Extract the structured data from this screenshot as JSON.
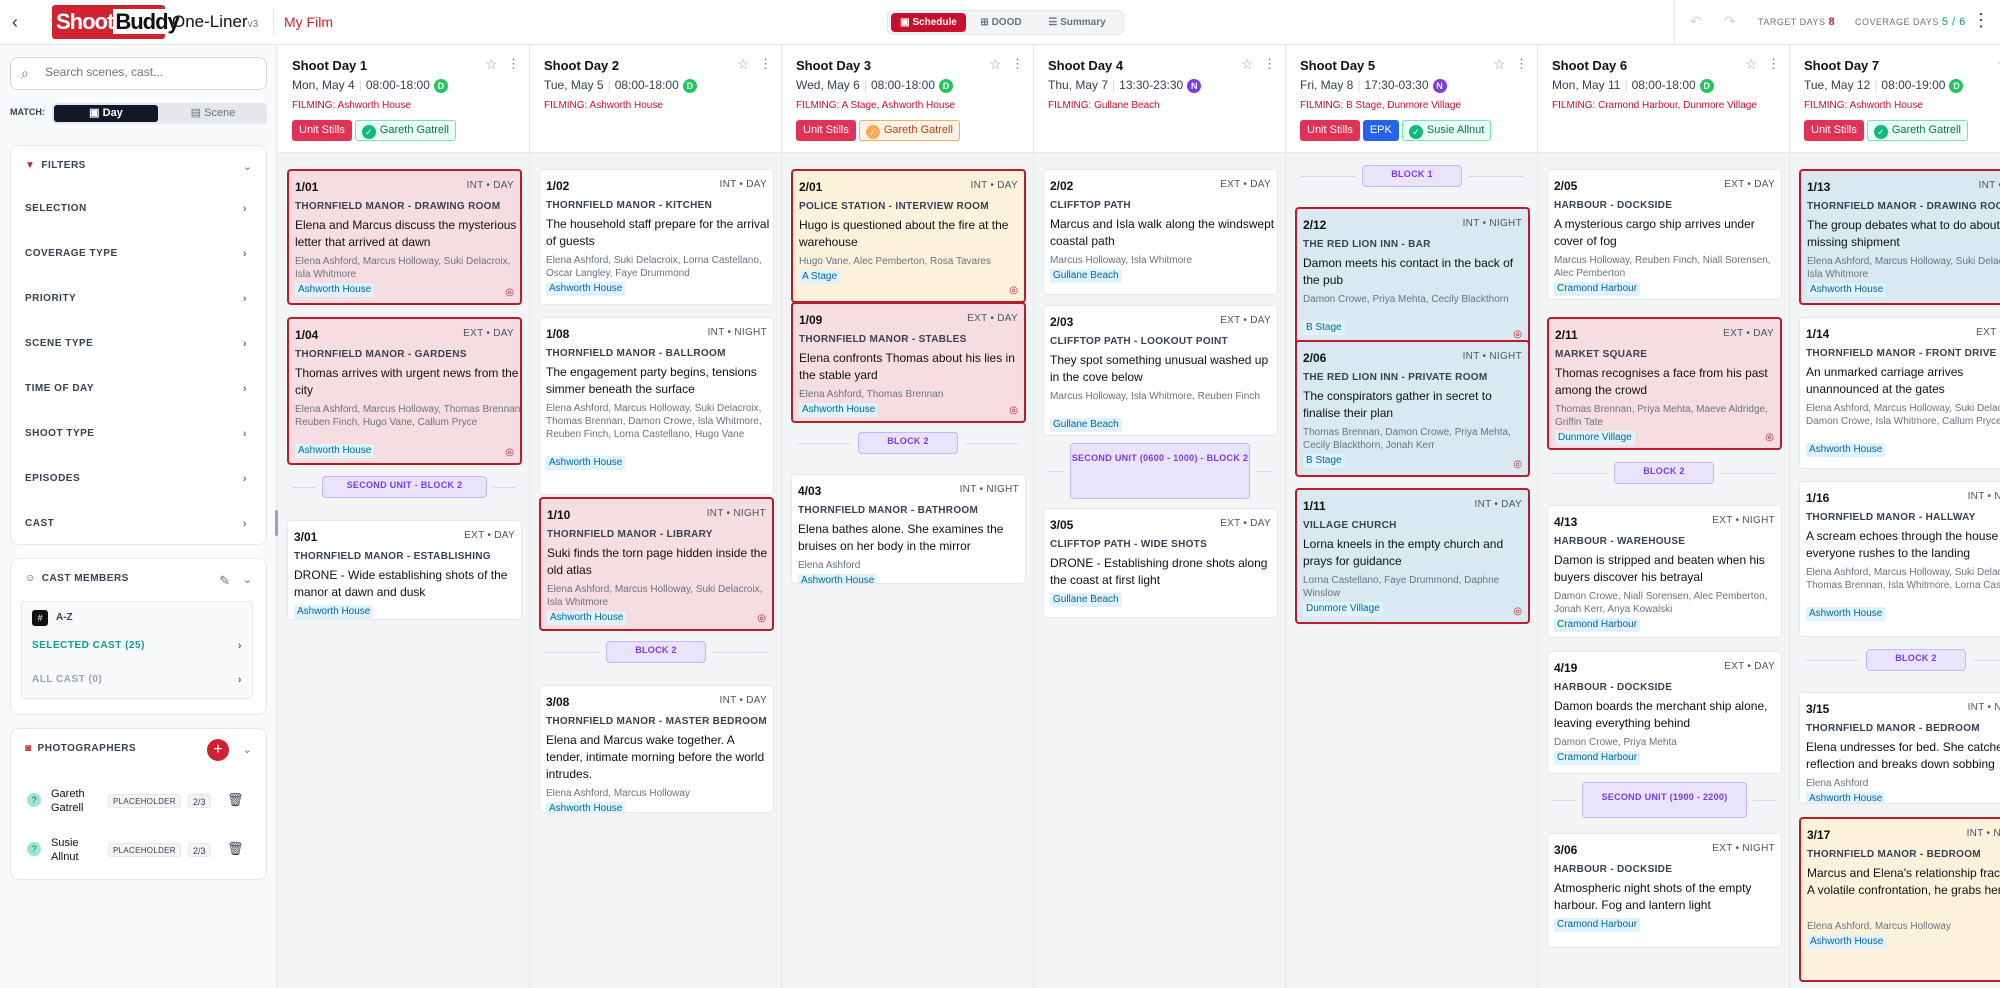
{
  "header": {
    "logo_shoot": "Shoot",
    "logo_buddy": "Buddy",
    "app_name": "One-Liner",
    "app_version": "v3",
    "film_title": "My Film",
    "view_tabs": [
      {
        "label": "Schedule",
        "active": true
      },
      {
        "label": "DOOD",
        "active": false
      },
      {
        "label": "Summary",
        "active": false
      }
    ],
    "target_days_label": "TARGET DAYS",
    "target_days_value": "8",
    "coverage_days_label": "COVERAGE DAYS",
    "coverage_days_value": "5 / 6"
  },
  "sidebar": {
    "search_placeholder": "Search scenes, cast...",
    "match_label": "MATCH:",
    "match_options": [
      "Day",
      "Scene"
    ],
    "filters_title": "FILTERS",
    "filter_items": [
      "SELECTION",
      "COVERAGE TYPE",
      "PRIORITY",
      "SCENE TYPE",
      "TIME OF DAY",
      "SHOOT TYPE",
      "EPISODES",
      "CAST"
    ],
    "cast_title": "CAST MEMBERS",
    "cast_sort": "A-Z",
    "selected_cast": "SELECTED CAST (25)",
    "all_cast": "ALL CAST (0)",
    "photographers_title": "PHOTOGRAPHERS",
    "photographers": [
      {
        "name": "Gareth Gatrell",
        "badge": "PLACEHOLDER",
        "count": "2/3"
      },
      {
        "name": "Susie Allnut",
        "badge": "PLACEHOLDER",
        "count": "2/3"
      }
    ]
  },
  "colors": {
    "brand_red": "#c8102e",
    "day_badge": "#22c55e",
    "night_badge": "#7c3aed",
    "block_purple": "#7c3aed"
  },
  "days": [
    {
      "title": "Shoot Day 1",
      "date": "Mon, May 4",
      "time": "08:00-18:00",
      "badge": "D",
      "filming": "FILMING: Ashworth House",
      "tags": [
        {
          "text": "Unit Stills",
          "style": "red"
        },
        {
          "text": "Gareth Gatrell",
          "style": "green"
        }
      ],
      "items": [
        {
          "type": "scene",
          "num": "1/01",
          "ie": "INT • DAY",
          "loc": "THORNFIELD MANOR - DRAWING ROOM",
          "desc": "Elena and Marcus discuss the mysterious letter that arrived at dawn",
          "cast": "Elena Ashford, Marcus Holloway, Suki Delacroix, Isla Whitmore",
          "tag": "Ashworth House"
        },
        {
          "type": "scene",
          "num": "1/04",
          "ie": "EXT • DAY",
          "loc": "THORNFIELD MANOR - GARDENS",
          "desc": "Thomas arrives with urgent news from the city",
          "cast": "Elena Ashford, Marcus Holloway, Thomas Brennan, Reuben Finch, Hugo Vane, Callum Pryce",
          "tag": "Ashworth House"
        },
        {
          "type": "block",
          "label": "SECOND UNIT - BLOCK 2"
        },
        {
          "type": "scene",
          "num": "3/01",
          "ie": "EXT • DAY",
          "loc": "THORNFIELD MANOR - ESTABLISHING",
          "desc": "DRONE - Wide establishing shots of the manor at dawn and dusk",
          "cast": "",
          "tag": "Ashworth House"
        }
      ]
    },
    {
      "title": "Shoot Day 2",
      "date": "Tue, May 5",
      "time": "08:00-18:00",
      "badge": "D",
      "filming": "FILMING: Ashworth House",
      "tags": [],
      "items": [
        {
          "type": "scene",
          "num": "1/02",
          "ie": "INT • DAY",
          "loc": "THORNFIELD MANOR - KITCHEN",
          "desc": "The household staff prepare for the arrival of guests",
          "cast": "Elena Ashford, Suki Delacroix, Lorna Castellano, Oscar Langley, Faye Drummond",
          "tag": "Ashworth House"
        },
        {
          "type": "scene",
          "num": "1/08",
          "ie": "INT • NIGHT",
          "loc": "THORNFIELD MANOR - BALLROOM",
          "desc": "The engagement party begins, tensions simmer beneath the surface",
          "cast": "Elena Ashford, Marcus Holloway, Suki Delacroix, Thomas Brennan, Damon Crowe, Isla Whitmore, Reuben Finch, Lorna Castellano, Hugo Vane",
          "tag": "Ashworth House"
        },
        {
          "type": "scene",
          "num": "1/10",
          "ie": "INT • NIGHT",
          "loc": "THORNFIELD MANOR - LIBRARY",
          "desc": "Suki finds the torn page hidden inside the old atlas",
          "cast": "Elena Ashford, Marcus Holloway, Suki Delacroix, Isla Whitmore",
          "tag": "Ashworth House"
        },
        {
          "type": "block",
          "label": "BLOCK 2"
        },
        {
          "type": "scene",
          "num": "3/08",
          "ie": "INT • DAY",
          "loc": "THORNFIELD MANOR - MASTER BEDROOM",
          "desc": "Elena and Marcus wake together. A tender, intimate morning before the world intrudes.",
          "cast": "Elena Ashford, Marcus Holloway",
          "tag": "Ashworth House"
        }
      ]
    },
    {
      "title": "Shoot Day 3",
      "date": "Wed, May 6",
      "time": "08:00-18:00",
      "badge": "D",
      "filming": "FILMING: A Stage, Ashworth House",
      "tags": [
        {
          "text": "Unit Stills",
          "style": "red"
        },
        {
          "text": "Gareth Gatrell",
          "style": "orange"
        }
      ],
      "items": [
        {
          "type": "scene",
          "num": "2/01",
          "ie": "INT • DAY",
          "loc": "POLICE STATION - INTERVIEW ROOM",
          "desc": "Hugo is questioned about the fire at the warehouse",
          "cast": "Hugo Vane, Alec Pemberton, Rosa Tavares",
          "tag": "A Stage"
        },
        {
          "type": "scene",
          "num": "1/09",
          "ie": "EXT • DAY",
          "loc": "THORNFIELD MANOR - STABLES",
          "desc": "Elena confronts Thomas about his lies in the stable yard",
          "cast": "Elena Ashford, Thomas Brennan",
          "tag": "Ashworth House"
        },
        {
          "type": "block",
          "label": "BLOCK 2"
        },
        {
          "type": "scene",
          "num": "4/03",
          "ie": "INT • NIGHT",
          "loc": "THORNFIELD MANOR - BATHROOM",
          "desc": "Elena bathes alone. She examines the bruises on her body in the mirror",
          "cast": "Elena Ashford",
          "tag": "Ashworth House"
        }
      ]
    },
    {
      "title": "Shoot Day 4",
      "date": "Thu, May 7",
      "time": "13:30-23:30",
      "badge": "N",
      "filming": "FILMING: Gullane Beach",
      "tags": [],
      "items": [
        {
          "type": "scene",
          "num": "2/02",
          "ie": "EXT • DAY",
          "loc": "CLIFFTOP PATH",
          "desc": "Marcus and Isla walk along the windswept coastal path",
          "cast": "Marcus Holloway, Isla Whitmore",
          "tag": "Gullane Beach"
        },
        {
          "type": "scene",
          "num": "2/03",
          "ie": "EXT • DAY",
          "loc": "CLIFFTOP PATH - LOOKOUT POINT",
          "desc": "They spot something unusual washed up in the cove below",
          "cast": "Marcus Holloway, Isla Whitmore, Reuben Finch",
          "tag": "Gullane Beach"
        },
        {
          "type": "block",
          "label": "SECOND UNIT (0600 - 1000) - BLOCK 2"
        },
        {
          "type": "scene",
          "num": "3/05",
          "ie": "EXT • DAY",
          "loc": "CLIFFTOP PATH - WIDE SHOTS",
          "desc": "DRONE - Establishing drone shots along the coast at first light",
          "cast": "",
          "tag": "Gullane Beach"
        }
      ]
    },
    {
      "title": "Shoot Day 5",
      "date": "Fri, May 8",
      "time": "17:30-03:30",
      "badge": "N",
      "filming": "FILMING: B Stage, Dunmore Village",
      "tags": [
        {
          "text": "Unit Stills",
          "style": "red"
        },
        {
          "text": "EPK",
          "style": "blue"
        },
        {
          "text": "Susie Allnut",
          "style": "green"
        }
      ],
      "items": [
        {
          "type": "block",
          "label": "BLOCK 1"
        },
        {
          "type": "scene",
          "num": "2/12",
          "ie": "INT • NIGHT",
          "loc": "THE RED LION INN - BAR",
          "desc": "Damon meets his contact in the back of the pub",
          "cast": "Damon Crowe, Priya Mehta, Cecily Blackthorn",
          "tag": "B Stage"
        },
        {
          "type": "scene",
          "num": "2/06",
          "ie": "INT • NIGHT",
          "loc": "THE RED LION INN - PRIVATE ROOM",
          "desc": "The conspirators gather in secret to finalise their plan",
          "cast": "Thomas Brennan, Damon Crowe, Priya Mehta, Cecily Blackthorn, Jonah Kerr",
          "tag": "B Stage"
        },
        {
          "type": "scene",
          "num": "1/11",
          "ie": "INT • DAY",
          "loc": "VILLAGE CHURCH",
          "desc": "Lorna kneels in the empty church and prays for guidance",
          "cast": "Lorna Castellano, Faye Drummond, Daphne Winslow",
          "tag": "Dunmore Village"
        }
      ]
    },
    {
      "title": "Shoot Day 6",
      "date": "Mon, May 11",
      "time": "08:00-18:00",
      "badge": "D",
      "filming": "FILMING: Cramond Harbour, Dunmore Village",
      "tags": [],
      "items": [
        {
          "type": "scene",
          "num": "2/05",
          "ie": "EXT • DAY",
          "loc": "HARBOUR - DOCKSIDE",
          "desc": "A mysterious cargo ship arrives under cover of fog",
          "cast": "Marcus Holloway, Reuben Finch, Niall Sorensen, Alec Pemberton",
          "tag": "Cramond Harbour"
        },
        {
          "type": "scene",
          "num": "2/11",
          "ie": "EXT • DAY",
          "loc": "MARKET SQUARE",
          "desc": "Thomas recognises a face from his past among the crowd",
          "cast": "Thomas Brennan, Priya Mehta, Maeve Aldridge, Griffin Tate",
          "tag": "Dunmore Village"
        },
        {
          "type": "block",
          "label": "BLOCK 2"
        },
        {
          "type": "scene",
          "num": "4/13",
          "ie": "EXT • NIGHT",
          "loc": "HARBOUR - WAREHOUSE",
          "desc": "Damon is stripped and beaten when his buyers discover his betrayal",
          "cast": "Damon Crowe, Niall Sorensen, Alec Pemberton, Jonah Kerr, Anya Kowalski",
          "tag": "Cramond Harbour"
        },
        {
          "type": "scene",
          "num": "4/19",
          "ie": "EXT • DAY",
          "loc": "HARBOUR - DOCKSIDE",
          "desc": "Damon boards the merchant ship alone, leaving everything behind",
          "cast": "Damon Crowe, Priya Mehta",
          "tag": "Cramond Harbour"
        },
        {
          "type": "block",
          "label": "SECOND UNIT (1900 - 2200)"
        },
        {
          "type": "scene",
          "num": "3/06",
          "ie": "EXT • NIGHT",
          "loc": "HARBOUR - DOCKSIDE",
          "desc": "Atmospheric night shots of the empty harbour. Fog and lantern light",
          "cast": "",
          "tag": "Cramond Harbour"
        }
      ]
    },
    {
      "title": "Shoot Day 7",
      "date": "Tue, May 12",
      "time": "08:00-19:00",
      "badge": "D",
      "filming": "FILMING: Ashworth House",
      "tags": [
        {
          "text": "Unit Stills",
          "style": "red"
        },
        {
          "text": "Gareth Gatrell",
          "style": "green"
        }
      ],
      "items": [
        {
          "type": "scene",
          "num": "1/13",
          "ie": "INT • DAY",
          "loc": "THORNFIELD MANOR - DRAWING ROOM",
          "desc": "The group debates what to do about the missing shipment",
          "cast": "Elena Ashford, Marcus Holloway, Suki Delacroix, Isla Whitmore",
          "tag": "Ashworth House"
        },
        {
          "type": "scene",
          "num": "1/14",
          "ie": "EXT • DAY",
          "loc": "THORNFIELD MANOR - FRONT DRIVE",
          "desc": "An unmarked carriage arrives unannounced at the gates",
          "cast": "Elena Ashford, Marcus Holloway, Suki Delacroix, Damon Crowe, Isla Whitmore, Callum Pryce",
          "tag": "Ashworth House"
        },
        {
          "type": "scene",
          "num": "1/16",
          "ie": "INT • NIGHT",
          "loc": "THORNFIELD MANOR - HALLWAY",
          "desc": "A scream echoes through the house and everyone rushes to the landing",
          "cast": "Elena Ashford, Marcus Holloway, Suki Delacroix, Thomas Brennan, Isla Whitmore, Lorna Castellano",
          "tag": "Ashworth House"
        },
        {
          "type": "block",
          "label": "BLOCK 2"
        },
        {
          "type": "scene",
          "num": "3/15",
          "ie": "INT • NIGHT",
          "loc": "THORNFIELD MANOR - BEDROOM",
          "desc": "Elena undresses for bed. She catches her reflection and breaks down sobbing",
          "cast": "Elena Ashford",
          "tag": "Ashworth House"
        },
        {
          "type": "scene",
          "num": "3/17",
          "ie": "INT • NIGHT",
          "loc": "THORNFIELD MANOR - BEDROOM",
          "desc": "Marcus and Elena's relationship fractures. A volatile confrontation, he grabs her",
          "cast": "Elena Ashford, Marcus Holloway",
          "tag": "Ashworth House"
        }
      ]
    }
  ]
}
